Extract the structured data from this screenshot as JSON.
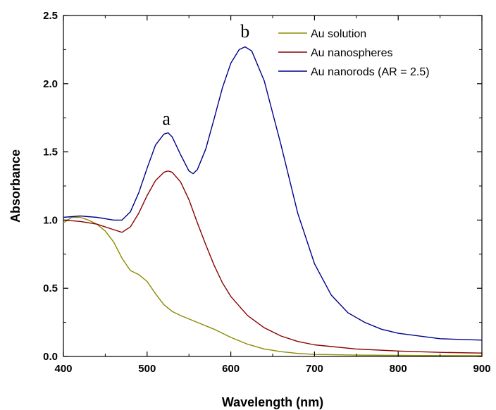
{
  "chart_data": {
    "type": "line",
    "title": "",
    "xlabel": "Wavelength (nm)",
    "ylabel": "Absorbance",
    "xlim": [
      400,
      900
    ],
    "ylim": [
      0.0,
      2.5
    ],
    "xticks": [
      "400",
      "500",
      "600",
      "700",
      "800",
      "900"
    ],
    "yticks": [
      "0.0",
      "0.5",
      "1.0",
      "1.5",
      "2.0",
      "2.5"
    ],
    "grid": false,
    "legend_position": "top-right",
    "series": [
      {
        "name": "Au solution",
        "color": "#8b8b00",
        "x": [
          400,
          410,
          420,
          430,
          440,
          450,
          460,
          470,
          480,
          490,
          500,
          510,
          520,
          530,
          540,
          560,
          580,
          600,
          620,
          640,
          660,
          680,
          700,
          750,
          800,
          850,
          900
        ],
        "y": [
          0.98,
          1.02,
          1.02,
          1.0,
          0.97,
          0.92,
          0.84,
          0.72,
          0.63,
          0.6,
          0.55,
          0.46,
          0.38,
          0.33,
          0.3,
          0.25,
          0.2,
          0.14,
          0.09,
          0.055,
          0.035,
          0.022,
          0.015,
          0.01,
          0.008,
          0.006,
          0.005
        ]
      },
      {
        "name": "Au nanospheres",
        "color": "#8b0000",
        "x": [
          400,
          420,
          440,
          460,
          470,
          480,
          490,
          500,
          510,
          520,
          525,
          530,
          540,
          550,
          560,
          570,
          580,
          590,
          600,
          620,
          640,
          660,
          680,
          700,
          750,
          800,
          850,
          900
        ],
        "y": [
          1.0,
          0.99,
          0.97,
          0.93,
          0.91,
          0.95,
          1.05,
          1.18,
          1.29,
          1.35,
          1.36,
          1.35,
          1.28,
          1.15,
          0.98,
          0.82,
          0.67,
          0.54,
          0.44,
          0.3,
          0.21,
          0.15,
          0.11,
          0.085,
          0.055,
          0.04,
          0.03,
          0.025
        ]
      },
      {
        "name": "Au nanorods (AR = 2.5)",
        "color": "#00008b",
        "x": [
          400,
          420,
          440,
          460,
          470,
          480,
          490,
          500,
          510,
          520,
          525,
          530,
          540,
          550,
          555,
          560,
          570,
          580,
          590,
          600,
          610,
          617,
          625,
          640,
          660,
          680,
          700,
          720,
          740,
          760,
          780,
          800,
          850,
          900
        ],
        "y": [
          1.02,
          1.03,
          1.02,
          1.0,
          1.0,
          1.06,
          1.2,
          1.38,
          1.55,
          1.63,
          1.64,
          1.61,
          1.48,
          1.36,
          1.34,
          1.37,
          1.52,
          1.74,
          1.97,
          2.15,
          2.25,
          2.27,
          2.24,
          2.02,
          1.55,
          1.05,
          0.68,
          0.45,
          0.32,
          0.25,
          0.2,
          0.17,
          0.13,
          0.12
        ]
      }
    ],
    "annotations": [
      {
        "text": "a",
        "x": 523,
        "y": 1.7
      },
      {
        "text": "b",
        "x": 617,
        "y": 2.34
      }
    ]
  }
}
